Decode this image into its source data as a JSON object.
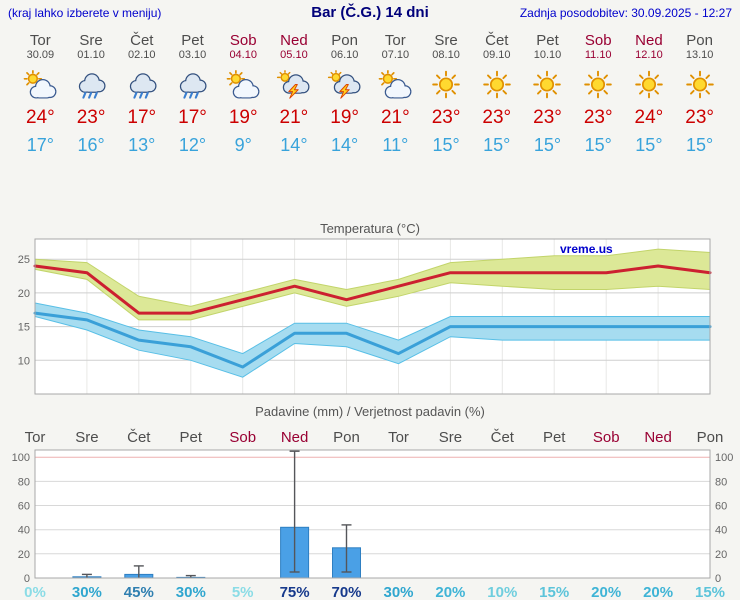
{
  "header": {
    "menu_hint": "(kraj lahko izberete v meniju)",
    "title": "Bar (Č.G.) 14 dni",
    "last_update": "Zadnja posodobitev: 30.09.2025 - 12:27"
  },
  "colors": {
    "link_blue": "#0000cc",
    "title_navy": "#00007a",
    "weekday_gray": "#4d4d4d",
    "weekend_red": "#990033",
    "max_temp_red": "#cc0000",
    "min_temp_blue": "#38a3db"
  },
  "days": [
    {
      "name": "Tor",
      "date": "30.09",
      "icon": "partly-cloudy",
      "max": "24°",
      "min": "17°",
      "weekend": false
    },
    {
      "name": "Sre",
      "date": "01.10",
      "icon": "rain",
      "max": "23°",
      "min": "16°",
      "weekend": false
    },
    {
      "name": "Čet",
      "date": "02.10",
      "icon": "rain",
      "max": "17°",
      "min": "13°",
      "weekend": false
    },
    {
      "name": "Pet",
      "date": "03.10",
      "icon": "rain",
      "max": "17°",
      "min": "12°",
      "weekend": false
    },
    {
      "name": "Sob",
      "date": "04.10",
      "icon": "partly-cloudy",
      "max": "19°",
      "min": "9°",
      "weekend": true
    },
    {
      "name": "Ned",
      "date": "05.10",
      "icon": "thunderstorm",
      "max": "21°",
      "min": "14°",
      "weekend": true
    },
    {
      "name": "Pon",
      "date": "06.10",
      "icon": "thunderstorm",
      "max": "19°",
      "min": "14°",
      "weekend": false
    },
    {
      "name": "Tor",
      "date": "07.10",
      "icon": "partly-cloudy",
      "max": "21°",
      "min": "11°",
      "weekend": false
    },
    {
      "name": "Sre",
      "date": "08.10",
      "icon": "sun",
      "max": "23°",
      "min": "15°",
      "weekend": false
    },
    {
      "name": "Čet",
      "date": "09.10",
      "icon": "sun",
      "max": "23°",
      "min": "15°",
      "weekend": false
    },
    {
      "name": "Pet",
      "date": "10.10",
      "icon": "sun",
      "max": "23°",
      "min": "15°",
      "weekend": false
    },
    {
      "name": "Sob",
      "date": "11.10",
      "icon": "sun",
      "max": "23°",
      "min": "15°",
      "weekend": true
    },
    {
      "name": "Ned",
      "date": "12.10",
      "icon": "sun",
      "max": "24°",
      "min": "15°",
      "weekend": true
    },
    {
      "name": "Pon",
      "date": "13.10",
      "icon": "sun",
      "max": "23°",
      "min": "15°",
      "weekend": false
    }
  ],
  "chart_data": [
    {
      "type": "line",
      "title": "Temperatura (°C)",
      "watermark": "vreme.us",
      "x_labels": [
        "Tor",
        "Sre",
        "Čet",
        "Pet",
        "Sob",
        "Ned",
        "Pon",
        "Tor",
        "Sre",
        "Čet",
        "Pet",
        "Sob",
        "Ned",
        "Pon"
      ],
      "ylim": [
        5,
        28
      ],
      "yticks": [
        10,
        15,
        20,
        25
      ],
      "grid": true,
      "legend_position": "none",
      "series": [
        {
          "name": "Max temperatura",
          "color": "#cc2030",
          "band_color": "#dce897",
          "band_edge": "#c2d46a",
          "values": [
            24,
            23,
            17,
            17,
            19,
            21,
            19,
            21,
            23,
            23,
            23,
            23,
            24,
            23
          ],
          "band_high": [
            25,
            24.5,
            19.5,
            18,
            20,
            22,
            20.5,
            22,
            24.5,
            25,
            25.5,
            25.5,
            26.5,
            26
          ],
          "band_low": [
            23.5,
            22,
            16,
            16,
            18,
            20,
            18,
            19.5,
            21.5,
            21,
            20.5,
            20.5,
            21,
            20.5
          ]
        },
        {
          "name": "Min temperatura",
          "color": "#3aa0d8",
          "band_color": "#a6dcf0",
          "band_edge": "#58bfe6",
          "values": [
            17,
            16,
            13,
            12,
            9,
            14,
            14,
            11,
            15,
            15,
            15,
            15,
            15,
            15
          ],
          "band_high": [
            18.5,
            17,
            14.5,
            13.5,
            11,
            15.5,
            15.5,
            13,
            16.5,
            16.5,
            16.5,
            16.5,
            16.5,
            16.5
          ],
          "band_low": [
            16.5,
            14.5,
            11.5,
            10,
            7.5,
            12.5,
            12,
            9.5,
            13.5,
            13,
            13,
            13,
            13,
            13
          ]
        }
      ]
    },
    {
      "type": "bar",
      "title": "Padavine (mm) / Verjetnost padavin (%)",
      "categories": [
        "Tor",
        "Sre",
        "Čet",
        "Pet",
        "Sob",
        "Ned",
        "Pon",
        "Tor",
        "Sre",
        "Čet",
        "Pet",
        "Sob",
        "Ned",
        "Pon"
      ],
      "values": [
        0,
        1,
        3,
        0.5,
        0,
        42,
        25,
        0,
        0,
        0,
        0,
        0,
        0,
        0
      ],
      "whisker_low": [
        0,
        0,
        0,
        0,
        0,
        5,
        5,
        0,
        0,
        0,
        0,
        0,
        0,
        0
      ],
      "whisker_high": [
        0,
        3,
        10,
        2,
        0,
        105,
        44,
        0,
        0,
        0,
        0,
        0,
        0,
        0
      ],
      "probabilities": [
        "0%",
        "30%",
        "45%",
        "30%",
        "5%",
        "75%",
        "70%",
        "30%",
        "20%",
        "10%",
        "15%",
        "20%",
        "20%",
        "15%"
      ],
      "prob_colors": [
        "#8adce6",
        "#2fa6cf",
        "#2f7fb0",
        "#2fa6cf",
        "#8adce6",
        "#173a8c",
        "#173a8c",
        "#2fa6cf",
        "#3fb4d6",
        "#6fcede",
        "#5cc4da",
        "#3fb4d6",
        "#3fb4d6",
        "#5cc4da"
      ],
      "ylim": [
        0,
        106
      ],
      "yticks": [
        0,
        20,
        40,
        60,
        80,
        100
      ],
      "bar_color": "#4aa0e6",
      "bar_edge": "#2e7fc2",
      "hundred_line_color": "#eeb0b0"
    }
  ]
}
